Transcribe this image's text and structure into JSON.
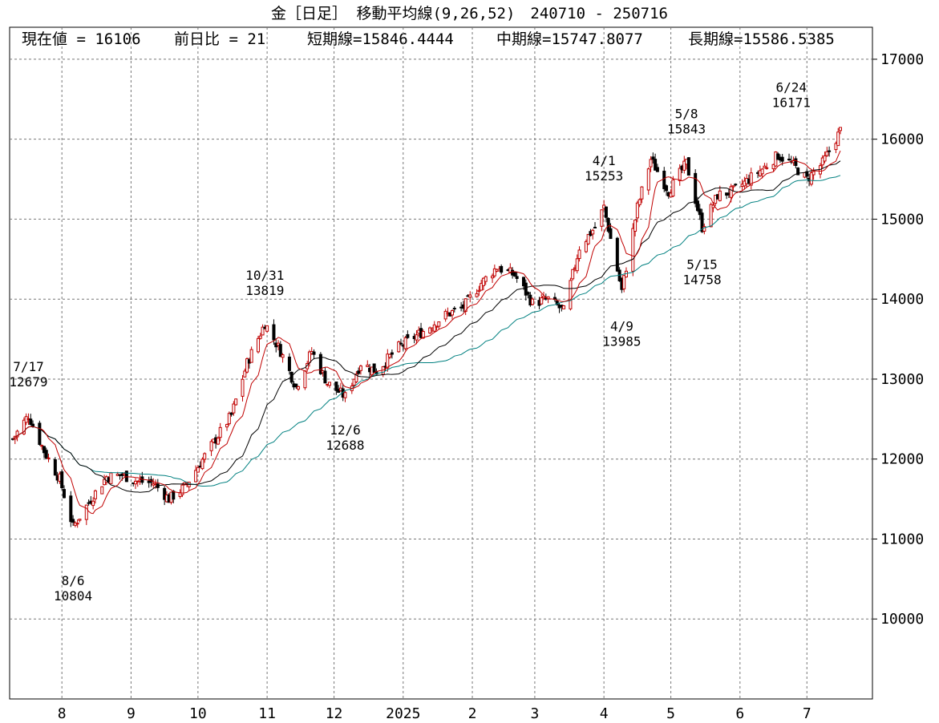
{
  "title": "金［日足］ 移動平均線(9,26,52)　240710 - 250716",
  "info": {
    "current": "現在値 = 16106",
    "change": "前日比 = 21",
    "short": "短期線=15846.4444",
    "mid": "中期線=15747.8077",
    "long": "長期線=15586.5385"
  },
  "chart_data": {
    "type": "candlestick",
    "ylim": [
      9000,
      17400
    ],
    "y_ticks": [
      "10000",
      "11000",
      "12000",
      "13000",
      "14000",
      "15000",
      "16000",
      "17000"
    ],
    "x_ticks": [
      "8",
      "9",
      "10",
      "11",
      "12",
      "2025",
      "2",
      "3",
      "4",
      "5",
      "6",
      "7"
    ],
    "moving_averages": {
      "short": {
        "period": 9,
        "color": "#c00000"
      },
      "mid": {
        "period": 26,
        "color": "#000000"
      },
      "long": {
        "period": 52,
        "color": "#008080"
      }
    },
    "up_color": "#c00000",
    "down_color": "#000000",
    "annotations": [
      {
        "date": "7/17",
        "value": "12679"
      },
      {
        "date": "8/6",
        "value": "10804"
      },
      {
        "date": "10/31",
        "value": "13819"
      },
      {
        "date": "12/6",
        "value": "12688"
      },
      {
        "date": "4/1",
        "value": "15253"
      },
      {
        "date": "4/9",
        "value": "13985"
      },
      {
        "date": "5/8",
        "value": "15843"
      },
      {
        "date": "5/15",
        "value": "14758"
      },
      {
        "date": "6/24",
        "value": "16171"
      }
    ],
    "price_path": [
      [
        "2024-07-10",
        12250
      ],
      [
        "2024-07-17",
        12550
      ],
      [
        "2024-07-24",
        12100
      ],
      [
        "2024-07-31",
        11750
      ],
      [
        "2024-08-06",
        11150
      ],
      [
        "2024-08-14",
        11500
      ],
      [
        "2024-08-21",
        11780
      ],
      [
        "2024-08-28",
        11800
      ],
      [
        "2024-09-04",
        11720
      ],
      [
        "2024-09-11",
        11700
      ],
      [
        "2024-09-18",
        11500
      ],
      [
        "2024-09-25",
        11650
      ],
      [
        "2024-10-02",
        11950
      ],
      [
        "2024-10-09",
        12250
      ],
      [
        "2024-10-16",
        12550
      ],
      [
        "2024-10-23",
        13200
      ],
      [
        "2024-10-31",
        13700
      ],
      [
        "2024-11-07",
        13350
      ],
      [
        "2024-11-14",
        12900
      ],
      [
        "2024-11-21",
        13350
      ],
      [
        "2024-11-28",
        12950
      ],
      [
        "2024-12-06",
        12780
      ],
      [
        "2024-12-13",
        13200
      ],
      [
        "2024-12-20",
        13100
      ],
      [
        "2024-12-30",
        13400
      ],
      [
        "2025-01-10",
        13600
      ],
      [
        "2025-01-20",
        13800
      ],
      [
        "2025-01-28",
        13900
      ],
      [
        "2025-02-05",
        14200
      ],
      [
        "2025-02-12",
        14400
      ],
      [
        "2025-02-20",
        14300
      ],
      [
        "2025-02-28",
        13950
      ],
      [
        "2025-03-07",
        14000
      ],
      [
        "2025-03-14",
        13850
      ],
      [
        "2025-03-21",
        14650
      ],
      [
        "2025-03-28",
        14900
      ],
      [
        "2025-04-01",
        15150
      ],
      [
        "2025-04-09",
        14100
      ],
      [
        "2025-04-16",
        15150
      ],
      [
        "2025-04-22",
        15750
      ],
      [
        "2025-04-30",
        15350
      ],
      [
        "2025-05-08",
        15700
      ],
      [
        "2025-05-15",
        14900
      ],
      [
        "2025-05-22",
        15300
      ],
      [
        "2025-05-29",
        15350
      ],
      [
        "2025-06-05",
        15500
      ],
      [
        "2025-06-12",
        15650
      ],
      [
        "2025-06-18",
        15800
      ],
      [
        "2025-06-24",
        15700
      ],
      [
        "2025-07-01",
        15500
      ],
      [
        "2025-07-08",
        15700
      ],
      [
        "2025-07-16",
        16106
      ]
    ]
  }
}
